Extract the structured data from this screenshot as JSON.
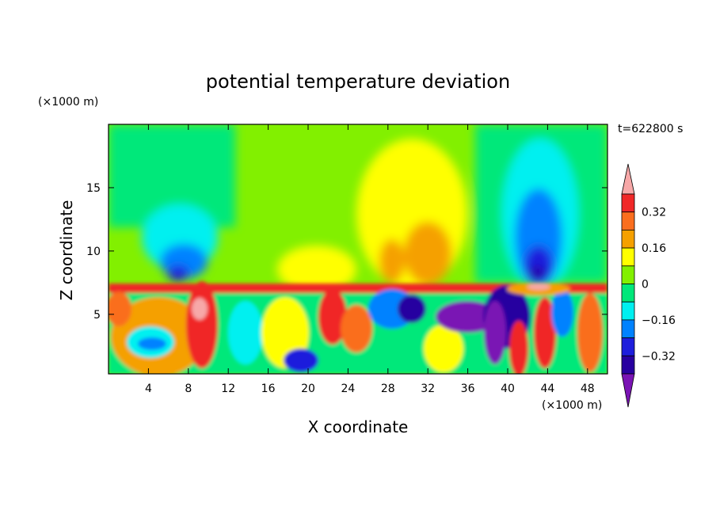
{
  "chart_data": {
    "type": "heatmap",
    "title": "potential temperature deviation",
    "xlabel": "X coordinate",
    "ylabel": "Z coordinate",
    "x_unit": "(×1000 m)",
    "y_unit": "(×1000 m)",
    "time_label": "t=622800 s",
    "xlim": [
      0,
      50
    ],
    "ylim": [
      0.3,
      20
    ],
    "x_ticks": [
      4,
      8,
      12,
      16,
      20,
      24,
      28,
      32,
      36,
      40,
      44,
      48
    ],
    "x_tick_labels": [
      "4",
      "8",
      "12",
      "16",
      "20",
      "24",
      "28",
      "32",
      "36",
      "40",
      "44",
      "48"
    ],
    "y_ticks": [
      5,
      10,
      15
    ],
    "y_tick_labels": [
      "5",
      "10",
      "15"
    ],
    "colorbar": {
      "levels": [
        -0.4,
        -0.32,
        -0.24,
        -0.16,
        -0.08,
        0,
        0.08,
        0.16,
        0.24,
        0.32,
        0.4
      ],
      "tick_values": [
        0.32,
        0.16,
        0,
        -0.16,
        -0.32
      ],
      "tick_labels": [
        "0.32",
        "0.16",
        "0",
        "−0.16",
        "−0.32"
      ],
      "colors": [
        "#f7a8a8",
        "#f02828",
        "#fa6e1e",
        "#f5a000",
        "#ffff00",
        "#82f000",
        "#00e87a",
        "#00f0f0",
        "#0082ff",
        "#1e1edc",
        "#2800a0",
        "#7a14b4"
      ],
      "extend": "both"
    },
    "features": [
      {
        "x": 6.5,
        "z": 11.5,
        "value": -0.16
      },
      {
        "x": 7.5,
        "z": 9.5,
        "value": -0.28
      },
      {
        "x": 29,
        "z": 14,
        "value": 0.12
      },
      {
        "x": 31,
        "z": 9,
        "value": 0.2
      },
      {
        "x": 43,
        "z": 13,
        "value": -0.24
      },
      {
        "x": 43,
        "z": 9,
        "value": -0.36
      },
      {
        "x": 4.5,
        "z": 2.5,
        "value": -0.2
      },
      {
        "x": 8.5,
        "z": 4,
        "value": 0.4
      },
      {
        "x": 40,
        "z": 4,
        "value": -0.4
      },
      {
        "x": 42,
        "z": 2.5,
        "value": 0.3
      }
    ]
  }
}
